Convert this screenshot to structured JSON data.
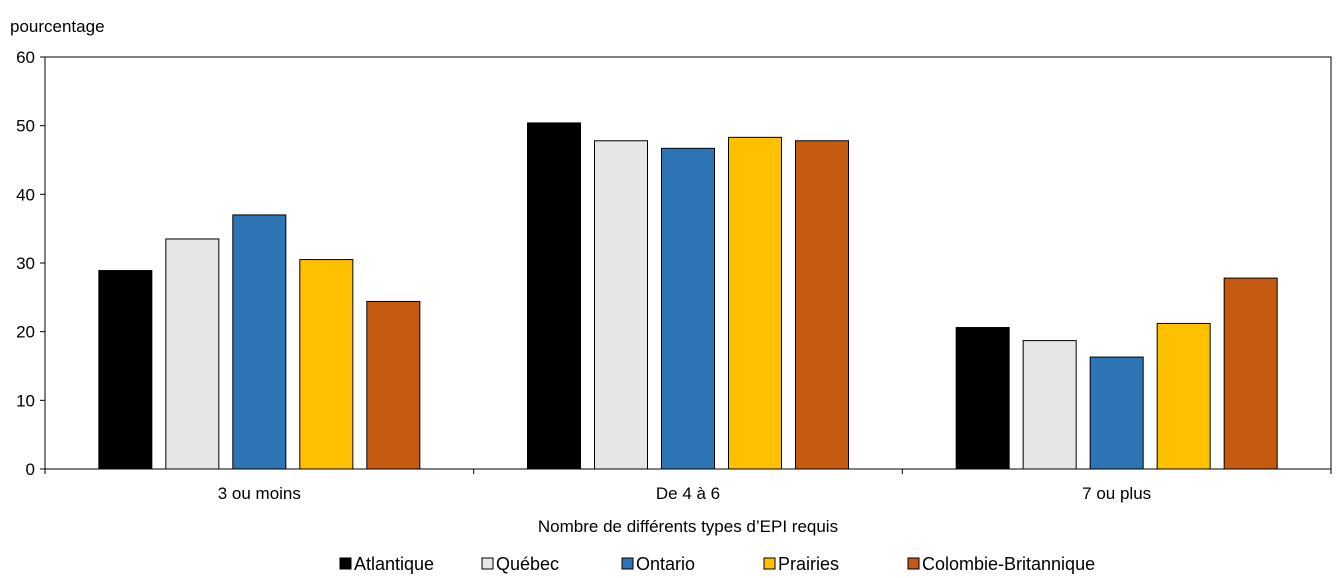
{
  "chart_data": {
    "type": "bar",
    "title": "",
    "ylabel": "pourcentage",
    "xlabel": "Nombre de différents types d’EPI requis",
    "categories": [
      "3 ou moins",
      "De 4 à 6",
      "7 ou plus"
    ],
    "ylim": [
      0,
      60
    ],
    "yticks": [
      0,
      10,
      20,
      30,
      40,
      50,
      60
    ],
    "grid": false,
    "legend_position": "bottom",
    "series": [
      {
        "name": "Atlantique",
        "color": "#000000",
        "values": [
          28.9,
          50.4,
          20.6
        ]
      },
      {
        "name": "Québec",
        "color": "#e6e6e6",
        "values": [
          33.5,
          47.8,
          18.7
        ]
      },
      {
        "name": "Ontario",
        "color": "#2e75b6",
        "values": [
          37.0,
          46.7,
          16.3
        ]
      },
      {
        "name": "Prairies",
        "color": "#ffc000",
        "values": [
          30.5,
          48.3,
          21.2
        ]
      },
      {
        "name": "Colombie-Britannique",
        "color": "#c55a11",
        "values": [
          24.4,
          47.8,
          27.8
        ]
      }
    ]
  }
}
